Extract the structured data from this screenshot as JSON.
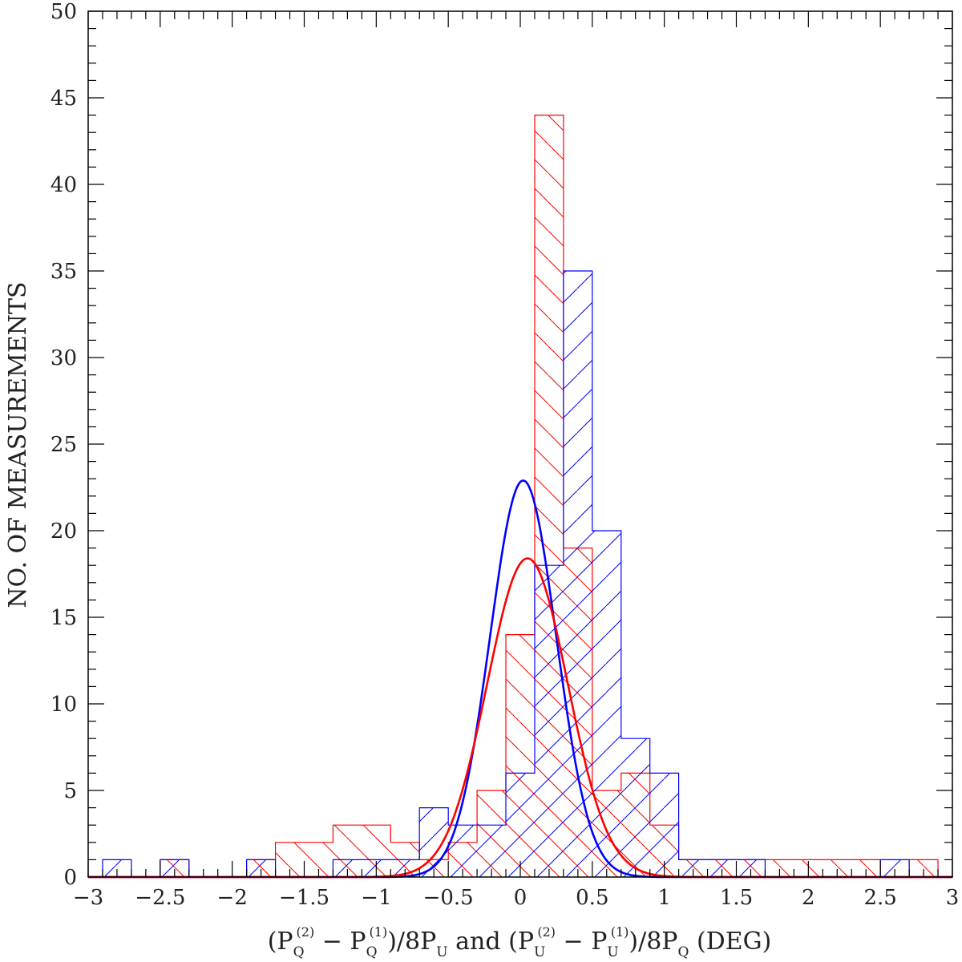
{
  "chart_data": {
    "type": "bar",
    "subtype": "overlaid step histograms with gaussian fits",
    "xlim": [
      -3,
      3
    ],
    "ylim": [
      0,
      50
    ],
    "x_ticks": [
      "-3",
      "-2.5",
      "-2",
      "-1.5",
      "-1",
      "-0.5",
      "0",
      "0.5",
      "1",
      "1.5",
      "2",
      "2.5",
      "3"
    ],
    "y_ticks": [
      "0",
      "5",
      "10",
      "15",
      "20",
      "25",
      "30",
      "35",
      "40",
      "45",
      "50"
    ],
    "ylabel": "NO. OF MEASUREMENTS",
    "xlabel": {
      "part1": "(P",
      "sub_q": "Q",
      "sup_2": "(2)",
      "minus": " − P",
      "sup_1": "(1)",
      "part2": ")/8P",
      "sub_u": "U",
      "middle": " and (P",
      "part3": ")/8P",
      "end": " (DEG)"
    },
    "bin_width": 0.2,
    "bin_edges_start": -2.9,
    "series": [
      {
        "color": "#ff0000",
        "hatch": "backslash",
        "values": [
          0,
          0,
          1,
          0,
          0,
          1,
          2,
          2,
          3,
          3,
          2,
          1,
          2,
          5,
          14,
          44,
          19,
          5,
          6,
          3,
          1,
          1,
          1,
          1,
          1,
          1,
          1,
          0,
          1
        ]
      },
      {
        "color": "#0000ff",
        "hatch": "slash",
        "values": [
          1,
          0,
          1,
          0,
          0,
          1,
          0,
          0,
          1,
          1,
          1,
          4,
          3,
          3,
          6,
          18,
          35,
          20,
          8,
          6,
          1,
          1,
          1,
          0,
          0,
          0,
          0,
          1,
          0
        ]
      }
    ],
    "fits": [
      {
        "color": "#0000ff",
        "amplitude": 22.9,
        "mean": 0.02,
        "sigma": 0.23
      },
      {
        "color": "#ff0000",
        "amplitude": 18.4,
        "mean": 0.05,
        "sigma": 0.28
      }
    ],
    "grid": false
  }
}
